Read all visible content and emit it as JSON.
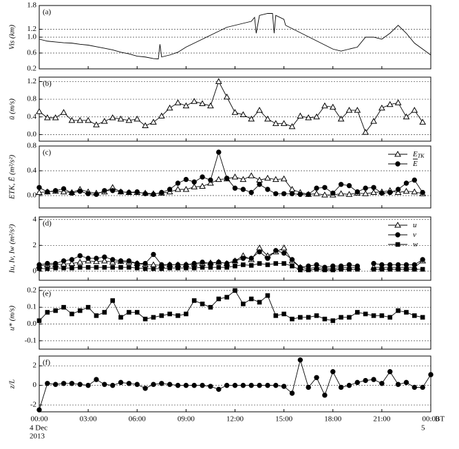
{
  "chart_data": [
    {
      "type": "line",
      "annotation": "(a)",
      "ylabel": "Vis (km)",
      "xlim": [
        0,
        24
      ],
      "ylim": [
        0.2,
        1.8
      ],
      "yticks": [
        0.2,
        0.6,
        {
          "value": 1.0,
          "label": "1.0"
        },
        1.2,
        1.8
      ],
      "grid": true,
      "series": [
        {
          "name": null,
          "color": "#000000",
          "marker": "none",
          "x": [
            0,
            0.5,
            1,
            1.5,
            2,
            2.5,
            3,
            3.5,
            4,
            4.5,
            5,
            5.5,
            6,
            6.5,
            7,
            7.3,
            7.4,
            7.5,
            8,
            8.5,
            9,
            9.5,
            10,
            10.5,
            11,
            11.5,
            12,
            12.5,
            13,
            13.2,
            13.3,
            13.5,
            14,
            14.3,
            14.4,
            14.5,
            15,
            15.1,
            18,
            18.5,
            19,
            19.5,
            20,
            20.5,
            21,
            21.5,
            22,
            22.5,
            23,
            23.5,
            24
          ],
          "values": [
            0.95,
            0.9,
            0.88,
            0.86,
            0.85,
            0.82,
            0.8,
            0.76,
            0.72,
            0.68,
            0.62,
            0.58,
            0.52,
            0.5,
            0.46,
            0.45,
            0.82,
            0.5,
            0.55,
            0.62,
            0.75,
            0.85,
            0.95,
            1.05,
            1.15,
            1.25,
            1.3,
            1.35,
            1.4,
            1.5,
            1.1,
            1.55,
            1.6,
            1.6,
            1.1,
            1.55,
            1.45,
            1.3,
            0.7,
            0.65,
            0.7,
            0.75,
            1.0,
            1.0,
            0.95,
            1.1,
            1.3,
            1.1,
            0.85,
            0.7,
            0.55
          ]
        }
      ]
    },
    {
      "type": "line",
      "annotation": "(b)",
      "ylabel": "ū (m/s)",
      "xlim": [
        0,
        24
      ],
      "ylim": [
        -0.15,
        1.3
      ],
      "yticks": [
        {
          "value": 0,
          "label": "0.0"
        },
        0.4,
        0.8,
        1.2
      ],
      "grid": true,
      "series": [
        {
          "name": null,
          "color": "#000000",
          "marker": "triangle",
          "x": [
            0,
            0.5,
            1,
            1.5,
            2,
            2.5,
            3,
            3.5,
            4,
            4.5,
            5,
            5.5,
            6,
            6.5,
            7,
            7.5,
            8,
            8.5,
            9,
            9.5,
            10,
            10.5,
            11,
            11.5,
            12,
            12.5,
            13,
            13.5,
            14,
            14.5,
            15,
            15.5,
            16,
            16.5,
            17,
            17.5,
            18,
            18.5,
            19,
            19.5,
            20,
            20.5,
            21,
            21.5,
            22,
            22.5,
            23,
            23.5
          ],
          "values": [
            0.52,
            0.38,
            0.38,
            0.5,
            0.32,
            0.32,
            0.32,
            0.22,
            0.3,
            0.38,
            0.35,
            0.32,
            0.35,
            0.2,
            0.28,
            0.42,
            0.6,
            0.72,
            0.65,
            0.75,
            0.7,
            0.65,
            1.2,
            0.85,
            0.5,
            0.45,
            0.35,
            0.55,
            0.35,
            0.25,
            0.25,
            0.18,
            0.42,
            0.38,
            0.4,
            0.65,
            0.62,
            0.35,
            0.55,
            0.55,
            0.05,
            0.3,
            0.6,
            0.68,
            0.72,
            0.4,
            0.55,
            0.28
          ]
        }
      ]
    },
    {
      "type": "line",
      "annotation": "(c)",
      "ylabel": "ETK, Ē (m²/s²)",
      "xlim": [
        0,
        24
      ],
      "ylim": [
        -0.2,
        0.8
      ],
      "yticks": [
        {
          "value": 0,
          "label": "0.0"
        },
        0.4,
        0.8
      ],
      "grid": true,
      "series": [
        {
          "name": "E",
          "sub": "TK",
          "color": "#000000",
          "marker": "triangle",
          "x": [
            0,
            0.5,
            1,
            1.5,
            2,
            2.5,
            3,
            3.5,
            4,
            4.5,
            5,
            5.5,
            6,
            6.5,
            7,
            7.5,
            8,
            8.5,
            9,
            9.5,
            10,
            10.5,
            11,
            11.5,
            12,
            12.5,
            13,
            13.5,
            14,
            14.5,
            15,
            15.5,
            16,
            16.5,
            17,
            17.5,
            18,
            18.5,
            19,
            19.5,
            20,
            20.5,
            21,
            21.5,
            22,
            22.5,
            23,
            23.5
          ],
          "values": [
            0.05,
            0.06,
            0.07,
            0.06,
            0.05,
            0.1,
            0.06,
            0.04,
            0.06,
            0.13,
            0.06,
            0.05,
            0.05,
            0.04,
            0.03,
            0.04,
            0.06,
            0.1,
            0.1,
            0.14,
            0.15,
            0.2,
            0.26,
            0.27,
            0.3,
            0.26,
            0.32,
            0.25,
            0.28,
            0.26,
            0.27,
            0.1,
            0.05,
            0.02,
            0.03,
            0.01,
            0.01,
            0.03,
            0.02,
            0.04,
            0.03,
            0.05,
            0.06,
            0.08,
            0.05,
            0.07,
            0.06,
            0.03
          ]
        },
        {
          "name": "E",
          "overbar": true,
          "color": "#000000",
          "marker": "circle",
          "x": [
            0,
            0.5,
            1,
            1.5,
            2,
            2.5,
            3,
            3.5,
            4,
            4.5,
            5,
            5.5,
            6,
            6.5,
            7,
            7.5,
            8,
            8.5,
            9,
            9.5,
            10,
            10.5,
            11,
            11.5,
            12,
            12.5,
            13,
            13.5,
            14,
            14.5,
            15,
            15.5,
            16,
            16.5,
            17,
            17.5,
            18,
            18.5,
            19,
            19.5,
            20,
            20.5,
            21,
            21.5,
            22,
            22.5,
            23,
            23.5
          ],
          "values": [
            0.13,
            0.06,
            0.08,
            0.11,
            0.04,
            0.07,
            0.03,
            0.02,
            0.08,
            0.08,
            0.06,
            0.05,
            0.06,
            0.03,
            0.02,
            0.05,
            0.1,
            0.2,
            0.26,
            0.22,
            0.3,
            0.25,
            0.7,
            0.28,
            0.12,
            0.1,
            0.05,
            0.18,
            0.1,
            0.03,
            0.03,
            0.03,
            0.02,
            0.02,
            0.12,
            0.13,
            0.04,
            0.18,
            0.16,
            0.06,
            0.12,
            0.13,
            0.04,
            0.05,
            0.1,
            0.2,
            0.25,
            0.05
          ]
        }
      ]
    },
    {
      "type": "line",
      "annotation": "(d)",
      "ylabel": "Iu, Iv, Iw (m²/s²)",
      "xlim": [
        0,
        24
      ],
      "ylim": [
        -0.7,
        4.2
      ],
      "yticks": [
        0,
        2,
        4
      ],
      "grid": true,
      "series": [
        {
          "name": "u",
          "color": "#000000",
          "marker": "triangle",
          "x": [
            0,
            0.5,
            1,
            1.5,
            2,
            2.5,
            3,
            3.5,
            4,
            4.5,
            5,
            5.5,
            6,
            6.5,
            7,
            7.5,
            8,
            8.5,
            9,
            9.5,
            10,
            10.5,
            11,
            11.5,
            12,
            12.5,
            13,
            13.5,
            14,
            14.5,
            15,
            15.5,
            16,
            16.5,
            17,
            17.5,
            18,
            18.5,
            19,
            19.5,
            20,
            20.5,
            21,
            21.5,
            22,
            22.5,
            23,
            23.5
          ],
          "values": [
            0.4,
            0.5,
            0.5,
            0.55,
            0.6,
            0.7,
            0.8,
            0.75,
            0.8,
            0.7,
            0.75,
            0.7,
            0.6,
            0.5,
            0.5,
            0.45,
            0.5,
            0.5,
            0.5,
            0.55,
            0.6,
            0.65,
            0.7,
            0.6,
            0.8,
            1.2,
            0.9,
            1.8,
            1.2,
            1.5,
            1.8,
            0.8,
            0.3,
            0.2,
            0.3,
            0.2,
            0.2,
            0.3,
            0.3,
            0.3,
            null,
            0.3,
            0.3,
            0.3,
            0.3,
            0.3,
            0.3,
            0.8
          ]
        },
        {
          "name": "v",
          "color": "#000000",
          "marker": "circle",
          "x": [
            0,
            0.5,
            1,
            1.5,
            2,
            2.5,
            3,
            3.5,
            4,
            4.5,
            5,
            5.5,
            6,
            6.5,
            7,
            7.5,
            8,
            8.5,
            9,
            9.5,
            10,
            10.5,
            11,
            11.5,
            12,
            12.5,
            13,
            13.5,
            14,
            14.5,
            15,
            15.5,
            16,
            16.5,
            17,
            17.5,
            18,
            18.5,
            19,
            19.5,
            20,
            20.5,
            21,
            21.5,
            22,
            22.5,
            23,
            23.5
          ],
          "values": [
            0.5,
            0.6,
            0.6,
            0.8,
            0.9,
            1.2,
            1.0,
            1.0,
            1.1,
            0.9,
            0.8,
            0.8,
            0.6,
            0.6,
            1.3,
            0.5,
            0.5,
            0.5,
            0.5,
            0.6,
            0.7,
            0.6,
            0.7,
            0.6,
            0.8,
            1.0,
            1.0,
            1.5,
            1.0,
            1.6,
            1.4,
            0.9,
            0.3,
            0.4,
            0.5,
            0.3,
            0.4,
            0.4,
            0.5,
            0.4,
            null,
            0.6,
            0.5,
            0.5,
            0.5,
            0.5,
            0.5,
            0.9
          ]
        },
        {
          "name": "w",
          "color": "#000000",
          "marker": "square",
          "x": [
            0,
            0.5,
            1,
            1.5,
            2,
            2.5,
            3,
            3.5,
            4,
            4.5,
            5,
            5.5,
            6,
            6.5,
            7,
            7.5,
            8,
            8.5,
            9,
            9.5,
            10,
            10.5,
            11,
            11.5,
            12,
            12.5,
            13,
            13.5,
            14,
            14.5,
            15,
            15.5,
            16,
            16.5,
            17,
            17.5,
            18,
            18.5,
            19,
            19.5,
            20,
            20.5,
            21,
            21.5,
            22,
            22.5,
            23,
            23.5
          ],
          "values": [
            0.2,
            0.2,
            0.25,
            0.25,
            0.25,
            0.3,
            0.3,
            0.3,
            0.3,
            0.3,
            0.3,
            0.3,
            0.25,
            0.2,
            0.2,
            0.2,
            0.25,
            0.25,
            0.25,
            0.25,
            0.3,
            0.3,
            0.3,
            0.3,
            0.4,
            0.5,
            0.45,
            0.6,
            0.5,
            0.6,
            0.6,
            0.4,
            0.1,
            0.1,
            0.15,
            0.1,
            0.1,
            0.15,
            0.15,
            0.15,
            null,
            0.15,
            0.15,
            0.15,
            0.15,
            0.15,
            0.15,
            0.15
          ]
        }
      ]
    },
    {
      "type": "line",
      "annotation": "(e)",
      "ylabel": "u* (m/s)",
      "xlim": [
        0,
        24
      ],
      "ylim": [
        -0.15,
        0.22
      ],
      "yticks": [
        -0.1,
        {
          "value": 0,
          "label": "0.0"
        },
        0.1,
        0.2
      ],
      "grid": true,
      "series": [
        {
          "name": null,
          "color": "#000000",
          "marker": "square",
          "x": [
            0,
            0.5,
            1,
            1.5,
            2,
            2.5,
            3,
            3.5,
            4,
            4.5,
            5,
            5.5,
            6,
            6.5,
            7,
            7.5,
            8,
            8.5,
            9,
            9.5,
            10,
            10.5,
            11,
            11.5,
            12,
            12.5,
            13,
            13.5,
            14,
            14.5,
            15,
            15.5,
            16,
            16.5,
            17,
            17.5,
            18,
            18.5,
            19,
            19.5,
            20,
            20.5,
            21,
            21.5,
            22,
            22.5,
            23,
            23.5
          ],
          "values": [
            0.02,
            0.07,
            0.08,
            0.1,
            0.06,
            0.08,
            0.1,
            0.05,
            0.07,
            0.14,
            0.04,
            0.07,
            0.07,
            0.03,
            0.04,
            0.05,
            0.06,
            0.05,
            0.06,
            0.14,
            0.12,
            0.1,
            0.15,
            0.16,
            0.2,
            0.12,
            0.15,
            0.13,
            0.17,
            0.05,
            0.06,
            0.03,
            0.04,
            0.04,
            0.05,
            0.03,
            0.02,
            0.04,
            0.04,
            0.07,
            0.06,
            0.05,
            0.05,
            0.04,
            0.08,
            0.07,
            0.05,
            0.04
          ]
        }
      ]
    },
    {
      "type": "line",
      "annotation": "(f)",
      "ylabel": "z/L",
      "xlim": [
        0,
        24
      ],
      "ylim": [
        -2.7,
        3
      ],
      "yticks": [
        -2,
        0,
        2
      ],
      "grid": true,
      "xticks": [
        {
          "value": 0,
          "label": "00:00"
        },
        {
          "value": 3,
          "label": "03:00"
        },
        {
          "value": 6,
          "label": "06:00"
        },
        {
          "value": 9,
          "label": "09:00"
        },
        {
          "value": 12,
          "label": "12:00"
        },
        {
          "value": 15,
          "label": "15:00"
        },
        {
          "value": 18,
          "label": "18:00"
        },
        {
          "value": 21,
          "label": "21:00"
        },
        {
          "value": 24,
          "label": "00:00"
        }
      ],
      "x_unit": "BT",
      "date_start": [
        "4 Dec",
        "2013"
      ],
      "date_end": "5",
      "series": [
        {
          "name": null,
          "color": "#000000",
          "marker": "circle",
          "x": [
            0,
            0.5,
            1,
            1.5,
            2,
            2.5,
            3,
            3.5,
            4,
            4.5,
            5,
            5.5,
            6,
            6.5,
            7,
            7.5,
            8,
            8.5,
            9,
            9.5,
            10,
            10.5,
            11,
            11.5,
            12,
            12.5,
            13,
            13.5,
            14,
            14.5,
            15,
            15.5,
            16,
            16.5,
            17,
            17.5,
            18,
            18.5,
            19,
            19.5,
            20,
            20.5,
            21,
            21.5,
            22,
            22.5,
            23,
            23.5,
            24
          ],
          "values": [
            -2.5,
            0.2,
            0.1,
            0.2,
            0.2,
            0.1,
            0.0,
            0.6,
            0.1,
            0.0,
            0.3,
            0.2,
            0.1,
            -0.3,
            0.1,
            0.2,
            0.1,
            0.0,
            0.0,
            0.0,
            0.0,
            -0.1,
            -0.4,
            0.0,
            0.0,
            0.0,
            0.0,
            0.0,
            0.0,
            0.0,
            -0.1,
            -0.8,
            2.6,
            -0.2,
            0.8,
            -1.0,
            1.4,
            -0.2,
            0.0,
            0.3,
            0.5,
            0.6,
            0.2,
            1.4,
            0.1,
            0.3,
            -0.2,
            -0.2,
            1.1
          ]
        }
      ]
    }
  ]
}
